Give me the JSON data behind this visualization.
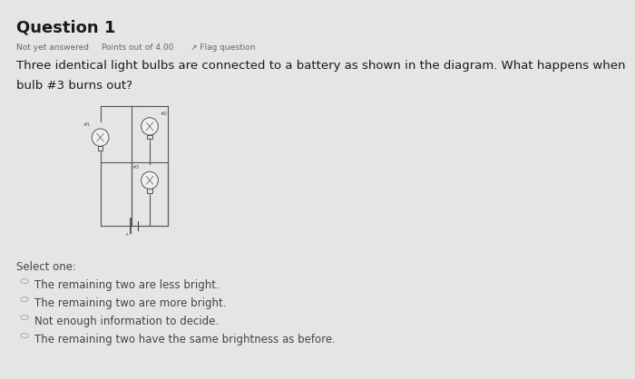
{
  "bg_color": "#e5e5e5",
  "title": "Question 1",
  "subtitle1": "Not yet answered",
  "subtitle2": "Points out of 4.00",
  "subtitle3": "↗ Flag question",
  "question_line1": "Three identical light bulbs are connected to a battery as shown in the diagram. What happens when",
  "question_line2": "bulb #3 burns out?",
  "select_label": "Select one:",
  "options": [
    "The remaining two are less bright.",
    "The remaining two are more bright.",
    "Not enough information to decide.",
    "The remaining two have the same brightness as before."
  ],
  "title_fontsize": 13,
  "subtitle_fontsize": 6.5,
  "question_fontsize": 9.5,
  "option_fontsize": 8.5,
  "select_fontsize": 8.5
}
